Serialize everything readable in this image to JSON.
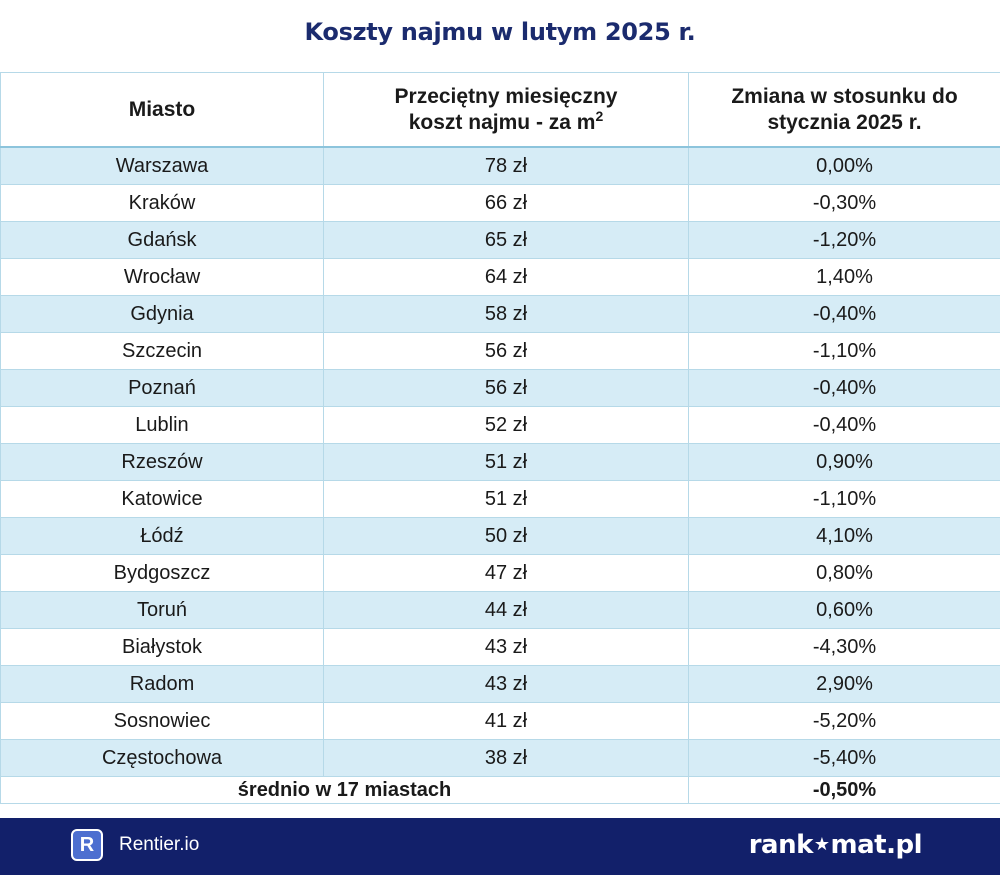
{
  "title": "Koszty najmu w lutym 2025 r.",
  "table": {
    "headers": {
      "city": "Miasto",
      "cost_line1": "Przeciętny miesięczny",
      "cost_line2": "koszt najmu - za m",
      "cost_sup": "2",
      "change_line1": "Zmiana w stosunku do",
      "change_line2": "stycznia 2025 r."
    },
    "rows": [
      {
        "city": "Warszawa",
        "cost": "78 zł",
        "change": "0,00%"
      },
      {
        "city": "Kraków",
        "cost": "66 zł",
        "change": "-0,30%"
      },
      {
        "city": "Gdańsk",
        "cost": "65 zł",
        "change": "-1,20%"
      },
      {
        "city": "Wrocław",
        "cost": "64 zł",
        "change": "1,40%"
      },
      {
        "city": "Gdynia",
        "cost": "58 zł",
        "change": "-0,40%"
      },
      {
        "city": "Szczecin",
        "cost": "56 zł",
        "change": "-1,10%"
      },
      {
        "city": "Poznań",
        "cost": "56 zł",
        "change": "-0,40%"
      },
      {
        "city": "Lublin",
        "cost": "52 zł",
        "change": "-0,40%"
      },
      {
        "city": "Rzeszów",
        "cost": "51 zł",
        "change": "0,90%"
      },
      {
        "city": "Katowice",
        "cost": "51 zł",
        "change": "-1,10%"
      },
      {
        "city": "Łódź",
        "cost": "50 zł",
        "change": "4,10%"
      },
      {
        "city": "Bydgoszcz",
        "cost": "47 zł",
        "change": "0,80%"
      },
      {
        "city": "Toruń",
        "cost": "44 zł",
        "change": "0,60%"
      },
      {
        "city": "Białystok",
        "cost": "43 zł",
        "change": "-4,30%"
      },
      {
        "city": "Radom",
        "cost": "43 zł",
        "change": "2,90%"
      },
      {
        "city": "Sosnowiec",
        "cost": "41 zł",
        "change": "-5,20%"
      },
      {
        "city": "Częstochowa",
        "cost": "38 zł",
        "change": "-5,40%"
      }
    ],
    "summary": {
      "label": "średnio w 17 miastach",
      "change": "-0,50%"
    }
  },
  "footer": {
    "rentier_logo_letter": "R",
    "rentier_label": "Rentier.io",
    "rankomat_part1": "rank",
    "rankomat_star": "★",
    "rankomat_part2": "mat.pl"
  },
  "colors": {
    "title": "#1b2b6e",
    "row_stripe": "#d6ecf6",
    "footer_bg": "#12206a",
    "rentier_logo_bg": "#4d6fd0"
  }
}
